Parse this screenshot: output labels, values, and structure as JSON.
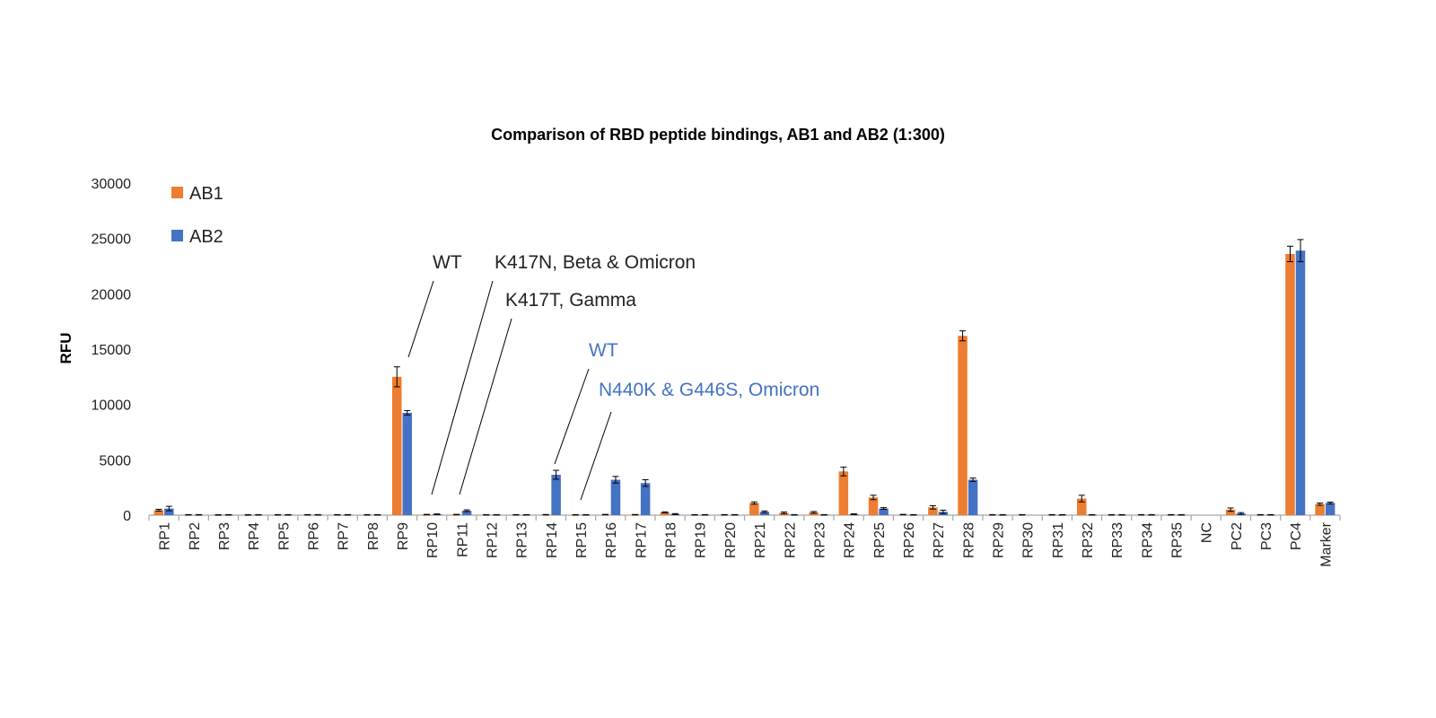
{
  "chart_data": {
    "type": "bar",
    "title": "Comparison of RBD peptide bindings, AB1 and AB2  (1:300)",
    "xlabel": "",
    "ylabel": "RFU",
    "ylim": [
      0,
      30000
    ],
    "yticks": [
      0,
      5000,
      10000,
      15000,
      20000,
      25000,
      30000
    ],
    "grid": false,
    "legend_position": "top-left",
    "categories": [
      "RP1",
      "RP2",
      "RP3",
      "RP4",
      "RP5",
      "RP6",
      "RP7",
      "RP8",
      "RP9",
      "RP10",
      "RP11",
      "RP12",
      "RP13",
      "RP14",
      "RP15",
      "RP16",
      "RP17",
      "RP18",
      "RP19",
      "RP20",
      "RP21",
      "RP22",
      "RP23",
      "RP24",
      "RP25",
      "RP26",
      "RP27",
      "RP28",
      "RP29",
      "RP30",
      "RP31",
      "RP32",
      "RP33",
      "RP34",
      "RP35",
      "NC",
      "PC2",
      "PC3",
      "PC4",
      "Marker"
    ],
    "series": [
      {
        "name": "AB1",
        "color": "#ED7D31",
        "values": [
          450,
          30,
          20,
          20,
          30,
          30,
          30,
          30,
          12500,
          50,
          50,
          30,
          30,
          40,
          30,
          50,
          40,
          250,
          30,
          30,
          1100,
          200,
          250,
          3950,
          1600,
          50,
          700,
          16200,
          30,
          30,
          30,
          1500,
          30,
          30,
          30,
          0,
          500,
          30,
          23600,
          1000
        ],
        "errors": [
          80,
          20,
          20,
          20,
          20,
          20,
          20,
          20,
          900,
          20,
          20,
          20,
          20,
          20,
          20,
          20,
          20,
          50,
          20,
          20,
          100,
          80,
          80,
          400,
          200,
          20,
          150,
          450,
          20,
          20,
          20,
          300,
          20,
          20,
          20,
          0,
          150,
          20,
          700,
          100
        ]
      },
      {
        "name": "AB2",
        "color": "#4472C4",
        "values": [
          600,
          30,
          30,
          30,
          30,
          30,
          30,
          30,
          9250,
          80,
          400,
          30,
          30,
          3650,
          30,
          3200,
          2900,
          100,
          30,
          30,
          300,
          30,
          30,
          80,
          600,
          30,
          300,
          3200,
          30,
          0,
          30,
          30,
          30,
          30,
          30,
          0,
          150,
          30,
          23900,
          1100
        ],
        "errors": [
          200,
          20,
          20,
          20,
          20,
          20,
          20,
          20,
          200,
          30,
          80,
          20,
          20,
          400,
          20,
          300,
          300,
          40,
          20,
          20,
          80,
          20,
          20,
          40,
          80,
          20,
          150,
          150,
          20,
          0,
          20,
          20,
          20,
          20,
          20,
          0,
          80,
          20,
          1000,
          80
        ]
      }
    ],
    "annotations": [
      {
        "text": "WT",
        "color": "#222222",
        "points_to": "RP9"
      },
      {
        "text": "K417N,  Beta & Omicron",
        "color": "#222222",
        "points_to": "RP10"
      },
      {
        "text": "K417T,  Gamma",
        "color": "#222222",
        "points_to": "RP11"
      },
      {
        "text": "WT",
        "color": "#4472C4",
        "points_to": "RP14"
      },
      {
        "text": "N440K & G446S, Omicron",
        "color": "#4472C4",
        "points_to": "RP15"
      }
    ]
  }
}
